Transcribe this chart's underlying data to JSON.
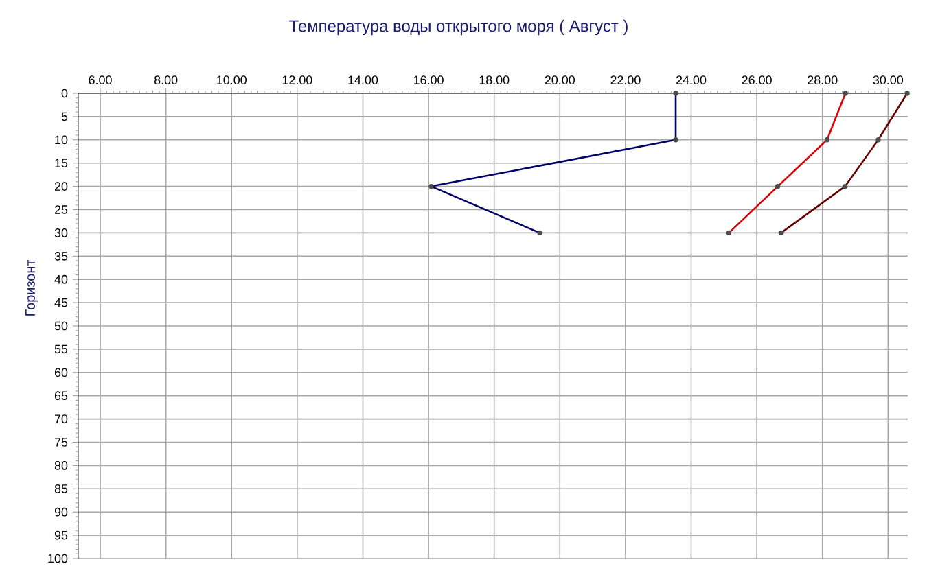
{
  "chart_data": {
    "type": "line",
    "title": "Температура воды открытого моря    ( Август )",
    "ylabel": "Горизонт",
    "series": [
      {
        "color": "#000066",
        "x": [
          23.53,
          23.53,
          16.08,
          19.39
        ],
        "values": [
          0,
          10,
          20,
          30
        ]
      },
      {
        "color": "#dd0000",
        "x": [
          28.7,
          28.14,
          26.64,
          25.15
        ],
        "values": [
          0,
          10,
          20,
          30
        ]
      },
      {
        "color": "#660000",
        "x": [
          30.58,
          29.7,
          28.69,
          26.74
        ],
        "values": [
          0,
          10,
          20,
          30
        ]
      }
    ],
    "xlim": [
      5.33,
      30.6
    ],
    "ylim": [
      100,
      0
    ],
    "xticks": [
      {
        "value": 6,
        "label": "6.00"
      },
      {
        "value": 8,
        "label": "8.00"
      },
      {
        "value": 10,
        "label": "10.00"
      },
      {
        "value": 12,
        "label": "12.00"
      },
      {
        "value": 14,
        "label": "14.00"
      },
      {
        "value": 16,
        "label": "16.00"
      },
      {
        "value": 18,
        "label": "18.00"
      },
      {
        "value": 20,
        "label": "20.00"
      },
      {
        "value": 22,
        "label": "22.00"
      },
      {
        "value": 24,
        "label": "24.00"
      },
      {
        "value": 26,
        "label": "26.00"
      },
      {
        "value": 28,
        "label": "28.00"
      },
      {
        "value": 30,
        "label": "30.00"
      }
    ],
    "yticks": [
      0,
      5,
      10,
      15,
      20,
      25,
      30,
      35,
      40,
      45,
      50,
      55,
      60,
      65,
      70,
      75,
      80,
      85,
      90,
      95,
      100
    ],
    "grid": true,
    "marker": "circle",
    "line_style": "solid"
  }
}
